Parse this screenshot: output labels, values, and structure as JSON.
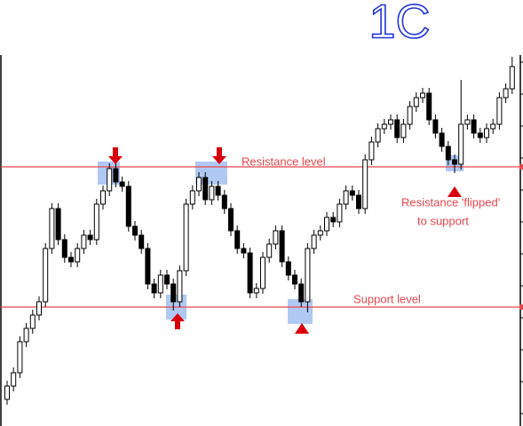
{
  "chart_data": {
    "type": "candlestick",
    "title": "1C",
    "open": [
      30,
      45,
      60,
      95,
      110,
      125,
      140,
      200,
      245,
      210,
      190,
      185,
      200,
      215,
      210,
      250,
      265,
      290,
      275,
      270,
      225,
      215,
      200,
      160,
      150,
      170,
      160,
      140,
      175,
      250,
      265,
      280,
      255,
      270,
      260,
      245,
      220,
      200,
      195,
      150,
      155,
      190,
      205,
      220,
      185,
      170,
      160,
      140,
      200,
      215,
      220,
      235,
      230,
      250,
      265,
      260,
      245,
      300,
      320,
      335,
      340,
      345,
      325,
      340,
      360,
      370,
      375,
      345,
      330,
      315,
      300,
      295,
      340,
      345,
      330,
      325,
      335,
      340,
      370,
      380
    ],
    "high": [
      51,
      66,
      101,
      116,
      131,
      146,
      206,
      251,
      251,
      216,
      196,
      206,
      221,
      221,
      256,
      271,
      296,
      300,
      281,
      276,
      231,
      221,
      206,
      166,
      176,
      176,
      166,
      181,
      256,
      271,
      286,
      286,
      276,
      276,
      266,
      251,
      226,
      206,
      201,
      161,
      196,
      211,
      226,
      226,
      191,
      176,
      166,
      206,
      221,
      226,
      241,
      241,
      256,
      271,
      271,
      266,
      306,
      326,
      341,
      346,
      351,
      351,
      346,
      366,
      376,
      381,
      381,
      351,
      336,
      321,
      306,
      390,
      351,
      351,
      336,
      341,
      346,
      376,
      386,
      416
    ],
    "low": [
      24,
      39,
      54,
      89,
      104,
      119,
      134,
      194,
      204,
      184,
      179,
      179,
      194,
      204,
      204,
      244,
      259,
      269,
      264,
      219,
      209,
      194,
      154,
      144,
      144,
      154,
      130,
      134,
      169,
      244,
      259,
      249,
      249,
      254,
      239,
      214,
      194,
      189,
      144,
      144,
      149,
      184,
      199,
      179,
      164,
      154,
      134,
      128,
      194,
      209,
      214,
      224,
      224,
      244,
      254,
      239,
      239,
      294,
      314,
      329,
      334,
      319,
      319,
      334,
      354,
      364,
      339,
      324,
      309,
      294,
      285,
      289,
      334,
      324,
      319,
      319,
      329,
      334,
      364,
      374
    ],
    "close": [
      45,
      60,
      95,
      110,
      125,
      140,
      200,
      245,
      210,
      190,
      185,
      200,
      215,
      210,
      250,
      265,
      290,
      275,
      270,
      225,
      215,
      200,
      160,
      150,
      170,
      160,
      140,
      175,
      250,
      265,
      280,
      255,
      270,
      260,
      245,
      220,
      200,
      195,
      150,
      155,
      190,
      205,
      220,
      185,
      170,
      160,
      140,
      200,
      215,
      220,
      235,
      230,
      250,
      265,
      260,
      245,
      300,
      320,
      335,
      340,
      345,
      325,
      340,
      360,
      370,
      375,
      345,
      330,
      315,
      300,
      295,
      340,
      345,
      330,
      325,
      335,
      340,
      370,
      380,
      405
    ],
    "ylim": [
      0,
      418
    ],
    "lines": [
      {
        "name": "Resistance level",
        "value": 292,
        "color": "#e8474f"
      },
      {
        "name": "Support level",
        "value": 134,
        "color": "#e8474f"
      }
    ],
    "annotations": [
      "Resistance 'flipped'",
      "to support"
    ]
  }
}
